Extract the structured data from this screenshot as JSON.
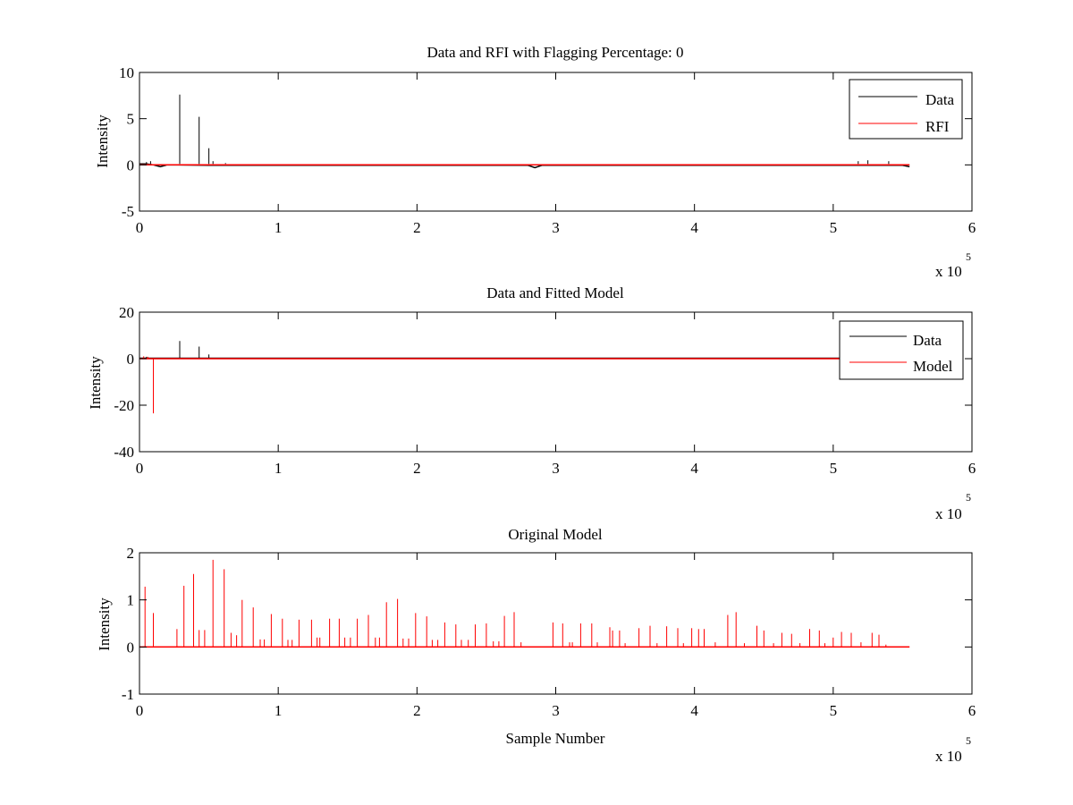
{
  "colors": {
    "data": "#000000",
    "rfi": "#ff0000",
    "model": "#ff0000",
    "axis": "#000000",
    "background": "#ffffff"
  },
  "chart_data": [
    {
      "type": "line",
      "title": "Data and RFI with Flagging Percentage: 0",
      "xlabel": "",
      "ylabel": "Intensity",
      "xlim": [
        0,
        6
      ],
      "ylim": [
        -5,
        10
      ],
      "xticks": [
        "0",
        "1",
        "2",
        "3",
        "4",
        "5",
        "6"
      ],
      "yticks": [
        "-5",
        "0",
        "5",
        "10"
      ],
      "ytick_values": [
        -5,
        0,
        5,
        10
      ],
      "x_exponent": {
        "base": "x 10",
        "power": "5"
      },
      "legend": {
        "position": "top-right",
        "entries": [
          "Data",
          "RFI"
        ]
      },
      "series": [
        {
          "name": "Data",
          "color": "#000000",
          "baseline": [
            [
              0,
              0.1
            ],
            [
              0.05,
              0.1
            ],
            [
              0.1,
              0.0
            ],
            [
              0.15,
              -0.2
            ],
            [
              0.2,
              0.0
            ],
            [
              0.5,
              -0.05
            ],
            [
              1.0,
              -0.05
            ],
            [
              2.0,
              -0.05
            ],
            [
              2.8,
              -0.05
            ],
            [
              2.85,
              -0.3
            ],
            [
              2.9,
              -0.05
            ],
            [
              3.5,
              -0.05
            ],
            [
              4.5,
              -0.05
            ],
            [
              5.5,
              -0.05
            ],
            [
              5.55,
              -0.2
            ]
          ],
          "spikes": [
            [
              0.05,
              0.3
            ],
            [
              0.08,
              0.4
            ],
            [
              0.29,
              7.6
            ],
            [
              0.43,
              5.2
            ],
            [
              0.5,
              1.8
            ],
            [
              0.53,
              0.4
            ],
            [
              0.62,
              0.2
            ],
            [
              5.18,
              0.4
            ],
            [
              5.25,
              0.5
            ],
            [
              5.4,
              0.4
            ]
          ]
        },
        {
          "name": "RFI",
          "color": "#ff0000",
          "baseline": [
            [
              0,
              0.0
            ],
            [
              5.55,
              0.0
            ]
          ],
          "spikes": []
        }
      ]
    },
    {
      "type": "line",
      "title": "Data and Fitted Model",
      "xlabel": "",
      "ylabel": "Intensity",
      "xlim": [
        0,
        6
      ],
      "ylim": [
        -40,
        20
      ],
      "xticks": [
        "0",
        "1",
        "2",
        "3",
        "4",
        "5",
        "6"
      ],
      "yticks": [
        "-40",
        "-20",
        "0",
        "20"
      ],
      "ytick_values": [
        -40,
        -20,
        0,
        20
      ],
      "x_exponent": {
        "base": "x 10",
        "power": "5"
      },
      "legend": {
        "position": "top-right",
        "entries": [
          "Data",
          "Model"
        ]
      },
      "series": [
        {
          "name": "Data",
          "color": "#000000",
          "baseline": [
            [
              0,
              0.2
            ],
            [
              5.55,
              0.2
            ]
          ],
          "spikes": [
            [
              0.29,
              7.6
            ],
            [
              0.43,
              5.2
            ],
            [
              0.5,
              1.8
            ],
            [
              0.05,
              0.8
            ]
          ]
        },
        {
          "name": "Model",
          "color": "#ff0000",
          "baseline": [
            [
              0,
              0.0
            ],
            [
              5.55,
              0.0
            ]
          ],
          "spikes": [
            [
              0.1,
              -23.5
            ],
            [
              0.03,
              1.0
            ],
            [
              0.06,
              0.8
            ]
          ]
        }
      ]
    },
    {
      "type": "line",
      "title": "Original Model",
      "xlabel": "Sample Number",
      "ylabel": "Intensity",
      "xlim": [
        0,
        6
      ],
      "ylim": [
        -1,
        2
      ],
      "xticks": [
        "0",
        "1",
        "2",
        "3",
        "4",
        "5",
        "6"
      ],
      "yticks": [
        "-1",
        "0",
        "1",
        "2"
      ],
      "ytick_values": [
        -1,
        0,
        1,
        2
      ],
      "x_exponent": {
        "base": "x 10",
        "power": "5"
      },
      "legend": null,
      "series": [
        {
          "name": "Model",
          "color": "#ff0000",
          "baseline": [
            [
              0,
              0.0
            ],
            [
              5.55,
              0.0
            ]
          ],
          "spikes": [
            [
              0.04,
              1.28
            ],
            [
              0.1,
              0.72
            ],
            [
              0.27,
              0.38
            ],
            [
              0.32,
              1.3
            ],
            [
              0.39,
              1.55
            ],
            [
              0.43,
              0.36
            ],
            [
              0.47,
              0.36
            ],
            [
              0.53,
              1.85
            ],
            [
              0.61,
              1.65
            ],
            [
              0.66,
              0.3
            ],
            [
              0.7,
              0.25
            ],
            [
              0.74,
              1.0
            ],
            [
              0.82,
              0.84
            ],
            [
              0.87,
              0.16
            ],
            [
              0.9,
              0.16
            ],
            [
              0.95,
              0.7
            ],
            [
              1.03,
              0.6
            ],
            [
              1.07,
              0.15
            ],
            [
              1.1,
              0.15
            ],
            [
              1.15,
              0.58
            ],
            [
              1.24,
              0.58
            ],
            [
              1.28,
              0.2
            ],
            [
              1.3,
              0.2
            ],
            [
              1.37,
              0.6
            ],
            [
              1.44,
              0.6
            ],
            [
              1.48,
              0.2
            ],
            [
              1.52,
              0.2
            ],
            [
              1.57,
              0.6
            ],
            [
              1.65,
              0.68
            ],
            [
              1.7,
              0.2
            ],
            [
              1.73,
              0.2
            ],
            [
              1.78,
              0.95
            ],
            [
              1.86,
              1.02
            ],
            [
              1.9,
              0.18
            ],
            [
              1.94,
              0.18
            ],
            [
              1.99,
              0.72
            ],
            [
              2.07,
              0.65
            ],
            [
              2.11,
              0.15
            ],
            [
              2.15,
              0.15
            ],
            [
              2.2,
              0.52
            ],
            [
              2.28,
              0.48
            ],
            [
              2.32,
              0.15
            ],
            [
              2.37,
              0.15
            ],
            [
              2.42,
              0.48
            ],
            [
              2.5,
              0.5
            ],
            [
              2.55,
              0.12
            ],
            [
              2.59,
              0.12
            ],
            [
              2.63,
              0.66
            ],
            [
              2.7,
              0.74
            ],
            [
              2.75,
              0.1
            ],
            [
              2.98,
              0.52
            ],
            [
              3.05,
              0.5
            ],
            [
              3.1,
              0.1
            ],
            [
              3.12,
              0.1
            ],
            [
              3.18,
              0.5
            ],
            [
              3.26,
              0.5
            ],
            [
              3.3,
              0.1
            ],
            [
              3.39,
              0.42
            ],
            [
              3.41,
              0.35
            ],
            [
              3.46,
              0.35
            ],
            [
              3.5,
              0.08
            ],
            [
              3.6,
              0.4
            ],
            [
              3.68,
              0.45
            ],
            [
              3.73,
              0.08
            ],
            [
              3.8,
              0.44
            ],
            [
              3.88,
              0.4
            ],
            [
              3.92,
              0.08
            ],
            [
              3.98,
              0.4
            ],
            [
              4.03,
              0.38
            ],
            [
              4.07,
              0.38
            ],
            [
              4.15,
              0.1
            ],
            [
              4.24,
              0.68
            ],
            [
              4.3,
              0.74
            ],
            [
              4.36,
              0.08
            ],
            [
              4.45,
              0.45
            ],
            [
              4.5,
              0.35
            ],
            [
              4.57,
              0.08
            ],
            [
              4.63,
              0.3
            ],
            [
              4.7,
              0.28
            ],
            [
              4.76,
              0.08
            ],
            [
              4.83,
              0.38
            ],
            [
              4.9,
              0.35
            ],
            [
              4.94,
              0.08
            ],
            [
              5.0,
              0.2
            ],
            [
              5.06,
              0.32
            ],
            [
              5.13,
              0.3
            ],
            [
              5.2,
              0.1
            ],
            [
              5.28,
              0.3
            ],
            [
              5.33,
              0.26
            ],
            [
              5.38,
              0.05
            ]
          ]
        }
      ]
    }
  ]
}
